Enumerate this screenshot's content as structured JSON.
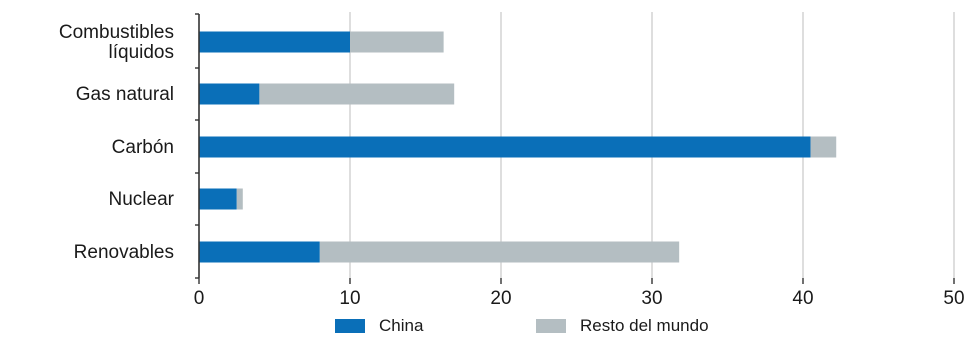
{
  "chart_data": {
    "type": "bar",
    "orientation": "horizontal",
    "stacked": true,
    "categories": [
      [
        "Combustibles",
        "líquidos"
      ],
      [
        "Gas natural"
      ],
      [
        "Carbón"
      ],
      [
        "Nuclear"
      ],
      [
        "Renovables"
      ]
    ],
    "series": [
      {
        "name": "China",
        "color": "#0a6fb8",
        "values": [
          10,
          4,
          40.5,
          2.5,
          8
        ]
      },
      {
        "name": "Resto del mundo",
        "color": "#b4bec2",
        "values": [
          6.2,
          12.9,
          1.7,
          0.4,
          23.8
        ]
      }
    ],
    "xlim": [
      0,
      50
    ],
    "xticks": [
      0,
      10,
      20,
      30,
      40,
      50
    ],
    "grid": true,
    "legend_position": "bottom"
  }
}
